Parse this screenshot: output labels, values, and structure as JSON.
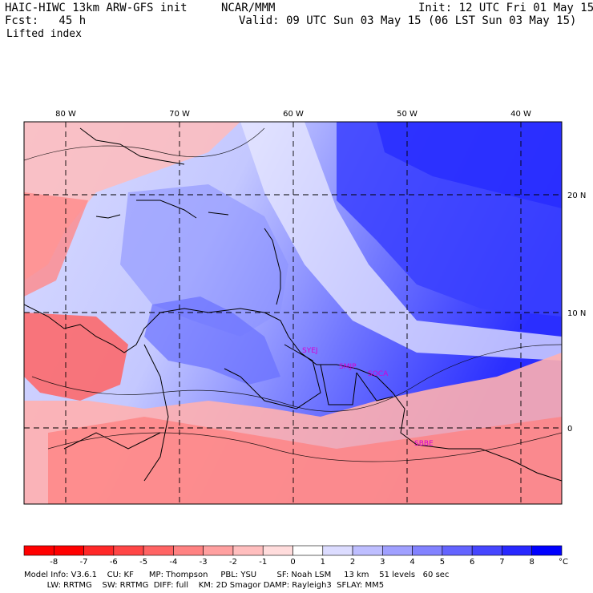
{
  "header": {
    "model": "HAIC-HIWC 13km ARW-GFS init",
    "org": "NCAR/MMM",
    "forecast": "Fcst:   45 h",
    "field": "Lifted index",
    "init": "Init: 12 UTC Fri 01 May 15",
    "valid": "Valid: 09 UTC Sun 03 May 15 (06 LST Sun 03 May 15)"
  },
  "map": {
    "lon_labels": [
      "80 W",
      "70 W",
      "60 W",
      "50 W",
      "40 W"
    ],
    "lat_labels": [
      "20 N",
      "10 N",
      "0"
    ],
    "stations": [
      "SYEJ",
      "SMJP",
      "SOCA",
      "SBBE"
    ]
  },
  "colorbar": {
    "unit": "°C",
    "tick_labels": [
      "-8",
      "-7",
      "-6",
      "-5",
      "-4",
      "-3",
      "-2",
      "-1",
      "0",
      "1",
      "2",
      "3",
      "4",
      "5",
      "6",
      "7",
      "8"
    ],
    "colors": [
      "#ff0000",
      "#ff2828",
      "#ff4646",
      "#ff6464",
      "#ff8282",
      "#ffa0a0",
      "#ffbebe",
      "#ffdcdc",
      "#ffffff",
      "#dcdcff",
      "#bebeff",
      "#a0a0ff",
      "#8282ff",
      "#6464ff",
      "#4646ff",
      "#2828ff",
      "#0000ff"
    ]
  },
  "footer": {
    "line1": "Model Info: V3.6.1    CU: KF      MP: Thompson     PBL: YSU        SF: Noah LSM     13 km    51 levels   60 sec",
    "line2": "         LW: RRTMG    SW: RRTMG  DIFF: full    KM: 2D Smagor DAMP: Rayleigh3  SFLAY: MM5"
  }
}
